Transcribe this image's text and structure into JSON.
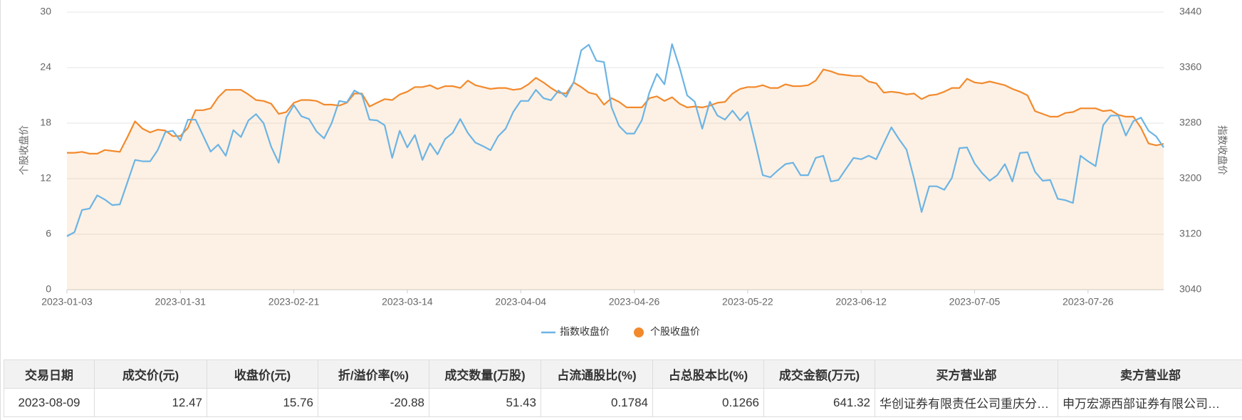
{
  "chart_data": {
    "type": "line",
    "y_label": "个股收盘价",
    "y2_label": "指数收盘价",
    "categories": [
      "2023-01-03",
      null,
      null,
      null,
      null,
      null,
      null,
      null,
      null,
      null,
      null,
      null,
      null,
      null,
      null,
      "2023-01-31",
      null,
      null,
      null,
      null,
      null,
      null,
      null,
      null,
      null,
      null,
      null,
      null,
      null,
      null,
      "2023-02-21",
      null,
      null,
      null,
      null,
      null,
      null,
      null,
      null,
      null,
      null,
      null,
      null,
      null,
      null,
      "2023-03-14",
      null,
      null,
      null,
      null,
      null,
      null,
      null,
      null,
      null,
      null,
      null,
      null,
      null,
      null,
      "2023-04-04",
      null,
      null,
      null,
      null,
      null,
      null,
      null,
      null,
      null,
      null,
      null,
      null,
      null,
      null,
      "2023-04-26",
      null,
      null,
      null,
      null,
      null,
      null,
      null,
      null,
      null,
      null,
      null,
      null,
      null,
      null,
      "2023-05-22",
      null,
      null,
      null,
      null,
      null,
      null,
      null,
      null,
      null,
      null,
      null,
      null,
      null,
      null,
      "2023-06-12",
      null,
      null,
      null,
      null,
      null,
      null,
      null,
      null,
      null,
      null,
      null,
      null,
      null,
      null,
      "2023-07-05",
      null,
      null,
      null,
      null,
      null,
      null,
      null,
      null,
      null,
      null,
      null,
      null,
      null,
      null,
      "2023-07-26",
      null,
      null,
      null,
      null,
      null,
      null,
      null,
      null,
      null,
      null
    ],
    "series": [
      {
        "name": "指数收盘价",
        "color": "#6cb4e4",
        "axis": "y2",
        "values": [
          3117,
          3123,
          3155,
          3157,
          3176,
          3170,
          3162,
          3163,
          3195,
          3227,
          3225,
          3225,
          3241,
          3267,
          3269,
          3255,
          3285,
          3285,
          3262,
          3239,
          3249,
          3233,
          3270,
          3260,
          3284,
          3293,
          3280,
          3246,
          3223,
          3288,
          3306,
          3290,
          3286,
          3268,
          3258,
          3280,
          3312,
          3310,
          3327,
          3321,
          3285,
          3284,
          3277,
          3230,
          3269,
          3245,
          3263,
          3227,
          3251,
          3235,
          3257,
          3266,
          3286,
          3266,
          3252,
          3247,
          3241,
          3261,
          3272,
          3296,
          3312,
          3312,
          3328,
          3316,
          3313,
          3327,
          3318,
          3339,
          3385,
          3393,
          3370,
          3368,
          3303,
          3276,
          3265,
          3265,
          3284,
          3324,
          3351,
          3336,
          3394,
          3360,
          3320,
          3311,
          3272,
          3311,
          3291,
          3285,
          3298,
          3284,
          3296,
          3252,
          3205,
          3202,
          3212,
          3221,
          3223,
          3205,
          3205,
          3230,
          3233,
          3196,
          3198,
          3214,
          3230,
          3228,
          3233,
          3228,
          3251,
          3274,
          3257,
          3242,
          3200,
          3152,
          3189,
          3189,
          3184,
          3201,
          3244,
          3245,
          3222,
          3208,
          3197,
          3205,
          3221,
          3196,
          3237,
          3238,
          3210,
          3197,
          3198,
          3171,
          3169,
          3165,
          3233,
          3225,
          3218,
          3277,
          3291,
          3291,
          3262,
          3283,
          3288,
          3269,
          3261,
          3245
        ]
      },
      {
        "name": "个股收盘价",
        "color": "#f28a2d",
        "area": true,
        "values": [
          14.8,
          14.8,
          14.9,
          14.7,
          14.7,
          15.1,
          15.0,
          14.9,
          16.5,
          18.2,
          17.4,
          17.0,
          17.3,
          17.2,
          16.6,
          16.6,
          17.5,
          19.4,
          19.4,
          19.6,
          20.8,
          21.6,
          21.6,
          21.6,
          21.1,
          20.5,
          20.4,
          20.1,
          19.0,
          19.2,
          20.2,
          20.5,
          20.5,
          20.4,
          20.0,
          20.0,
          19.9,
          20.2,
          21.2,
          21.2,
          19.8,
          20.2,
          20.6,
          20.5,
          21.1,
          21.4,
          21.9,
          21.9,
          22.1,
          21.7,
          22.0,
          22.0,
          21.8,
          22.6,
          22.1,
          21.9,
          21.7,
          21.8,
          21.8,
          21.6,
          21.7,
          22.2,
          22.9,
          22.4,
          21.8,
          21.3,
          21.2,
          22.4,
          21.9,
          21.3,
          21.1,
          20.0,
          20.7,
          20.3,
          19.7,
          19.7,
          19.7,
          20.7,
          20.9,
          20.4,
          20.8,
          20.1,
          19.7,
          19.8,
          19.7,
          19.9,
          20.2,
          20.3,
          21.2,
          21.7,
          21.9,
          21.9,
          22.1,
          21.8,
          21.8,
          22.2,
          22.0,
          22.0,
          22.1,
          22.6,
          23.8,
          23.6,
          23.3,
          23.2,
          23.1,
          23.1,
          22.5,
          22.3,
          21.3,
          21.4,
          21.3,
          21.1,
          21.2,
          20.6,
          21.0,
          21.1,
          21.4,
          21.8,
          21.8,
          22.8,
          22.4,
          22.3,
          22.5,
          22.3,
          22.1,
          21.7,
          21.4,
          21.0,
          19.3,
          19.0,
          18.7,
          18.7,
          19.1,
          19.2,
          19.6,
          19.6,
          19.6,
          19.3,
          19.4,
          18.9,
          18.7,
          18.7,
          17.5,
          15.8,
          15.6,
          15.76
        ]
      }
    ],
    "ylim": [
      0,
      30
    ],
    "yticks": [
      0,
      6,
      12,
      18,
      24,
      30
    ],
    "y2lim": [
      3040,
      3440
    ],
    "y2ticks": [
      3040,
      3120,
      3200,
      3280,
      3360,
      3440
    ],
    "grid": true,
    "legend": "bottom"
  },
  "table": {
    "columns": [
      "交易日期",
      "成交价(元)",
      "收盘价(元)",
      "折/溢价率(%)",
      "成交数量(万股)",
      "占流通股比(%)",
      "占总股本比(%)",
      "成交金额(万元)",
      "买方营业部",
      "卖方营业部"
    ],
    "rows": [
      [
        "2023-08-09",
        "12.47",
        "15.76",
        "-20.88",
        "51.43",
        "0.1784",
        "0.1266",
        "641.32",
        "华创证券有限责任公司重庆分…",
        "申万宏源西部证券有限公司…"
      ]
    ]
  }
}
